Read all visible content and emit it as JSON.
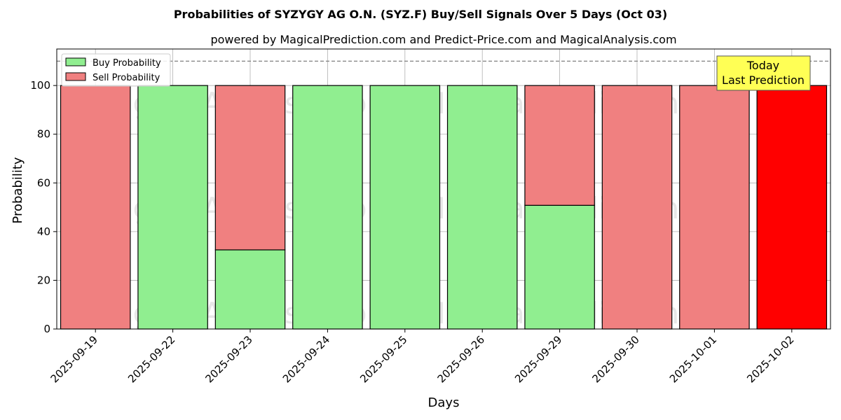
{
  "chart_data": {
    "type": "bar",
    "stacked": true,
    "title": "Probabilities of SYZYGY AG O.N. (SYZ.F) Buy/Sell Signals Over 5 Days (Oct 03)",
    "subtitle": "powered by MagicalPrediction.com and Predict-Price.com and MagicalAnalysis.com",
    "xlabel": "Days",
    "ylabel": "Probability",
    "ylim": [
      0,
      115
    ],
    "yticks": [
      0,
      20,
      40,
      60,
      80,
      100
    ],
    "reference_line": 110,
    "grid": true,
    "legend_position": "top-left",
    "categories": [
      "2025-09-19",
      "2025-09-22",
      "2025-09-23",
      "2025-09-24",
      "2025-09-25",
      "2025-09-26",
      "2025-09-29",
      "2025-09-30",
      "2025-10-01",
      "2025-10-02"
    ],
    "series": [
      {
        "name": "Buy Probability",
        "color": "#90ee90",
        "values": [
          0,
          100,
          32.5,
          100,
          100,
          100,
          50.8,
          0,
          0,
          0
        ]
      },
      {
        "name": "Sell Probability",
        "color": "#f08080",
        "values": [
          100,
          0,
          67.5,
          0,
          0,
          0,
          49.2,
          100,
          100,
          100
        ]
      }
    ],
    "highlight": {
      "index": 9,
      "color": "#ff0000"
    },
    "annotation": {
      "line1": "Today",
      "line2": "Last Prediction",
      "color": "#ffff55"
    },
    "watermarks": [
      "MagicalAnalysis.com",
      "MagicalPrediction.com"
    ]
  }
}
